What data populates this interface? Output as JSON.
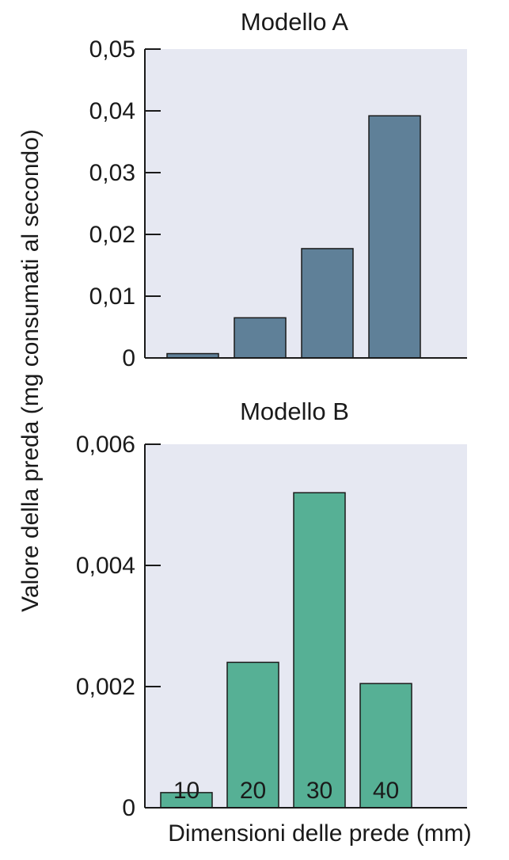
{
  "chart_data": [
    {
      "type": "bar",
      "title": "Modello A",
      "categories": [
        "10",
        "20",
        "30",
        "40"
      ],
      "values": [
        0.0007,
        0.0065,
        0.0177,
        0.0392
      ],
      "ylim": [
        0,
        0.05
      ],
      "yticks": [
        "0",
        "0,01",
        "0,02",
        "0,03",
        "0,04",
        "0,05"
      ],
      "grid": false,
      "bar_color": "#5f8098",
      "background_color": "#e6e8f2"
    },
    {
      "type": "bar",
      "title": "Modello B",
      "categories": [
        "10",
        "20",
        "30",
        "40"
      ],
      "values": [
        0.00025,
        0.0024,
        0.0052,
        0.00205
      ],
      "ylim": [
        0,
        0.006
      ],
      "yticks": [
        "0",
        "0,002",
        "0,004",
        "0,006"
      ],
      "xticks": [
        "10",
        "20",
        "30",
        "40"
      ],
      "grid": false,
      "bar_color": "#56b095",
      "background_color": "#e6e8f2"
    }
  ],
  "ylabel": "Valore della preda (mg consumati al secondo)",
  "xlabel": "Dimensioni delle prede (mm)"
}
